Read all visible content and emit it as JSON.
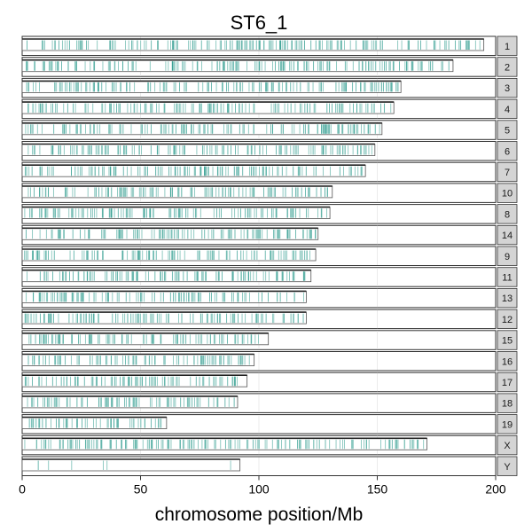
{
  "chart_data": {
    "type": "chromosome-ideogram",
    "title": "ST6_1",
    "xlabel": "chromosome position/Mb",
    "ylabel": "",
    "xlim": [
      0,
      200
    ],
    "x_ticks": [
      0,
      50,
      100,
      150,
      200
    ],
    "x_tick_labels": [
      "0",
      "50",
      "100",
      "150",
      "200"
    ],
    "grid": true,
    "mark_color": "#5fb3a8",
    "strip_color": "#d4d4d4",
    "chromosomes": [
      {
        "name": "1",
        "length_mb": 195
      },
      {
        "name": "2",
        "length_mb": 182
      },
      {
        "name": "3",
        "length_mb": 160
      },
      {
        "name": "4",
        "length_mb": 157
      },
      {
        "name": "5",
        "length_mb": 152
      },
      {
        "name": "6",
        "length_mb": 149
      },
      {
        "name": "7",
        "length_mb": 145
      },
      {
        "name": "10",
        "length_mb": 131
      },
      {
        "name": "8",
        "length_mb": 130
      },
      {
        "name": "14",
        "length_mb": 125
      },
      {
        "name": "9",
        "length_mb": 124
      },
      {
        "name": "11",
        "length_mb": 122
      },
      {
        "name": "13",
        "length_mb": 120
      },
      {
        "name": "12",
        "length_mb": 120
      },
      {
        "name": "15",
        "length_mb": 104
      },
      {
        "name": "16",
        "length_mb": 98
      },
      {
        "name": "17",
        "length_mb": 95
      },
      {
        "name": "18",
        "length_mb": 91
      },
      {
        "name": "19",
        "length_mb": 61
      },
      {
        "name": "X",
        "length_mb": 171
      },
      {
        "name": "Y",
        "length_mb": 92
      }
    ]
  }
}
